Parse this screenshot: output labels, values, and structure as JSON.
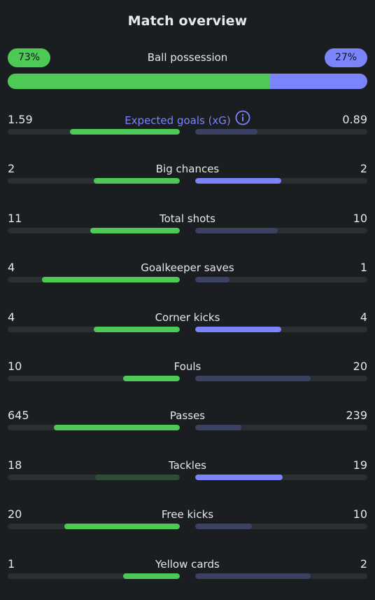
{
  "title": "Match overview",
  "colors": {
    "home_strong": "#4fc956",
    "home_muted": "#2e4d35",
    "away_strong": "#7b84fa",
    "away_muted": "#3b4160",
    "track": "#2a2f33"
  },
  "possession": {
    "label": "Ball possession",
    "home": "73%",
    "away": "27%",
    "home_fraction": 0.73,
    "away_fraction": 0.27
  },
  "stats": [
    {
      "label": "Expected goals (xG)",
      "home": "1.59",
      "away": "0.89",
      "home_frac": 0.64,
      "away_frac": 0.36,
      "home_state": "strong",
      "away_state": "muted",
      "accent": true,
      "icon": "info-icon"
    },
    {
      "label": "Big chances",
      "home": "2",
      "away": "2",
      "home_frac": 0.5,
      "away_frac": 0.5,
      "home_state": "strong",
      "away_state": "strong"
    },
    {
      "label": "Total shots",
      "home": "11",
      "away": "10",
      "home_frac": 0.52,
      "away_frac": 0.48,
      "home_state": "strong",
      "away_state": "muted"
    },
    {
      "label": "Goalkeeper saves",
      "home": "4",
      "away": "1",
      "home_frac": 0.8,
      "away_frac": 0.2,
      "home_state": "strong",
      "away_state": "muted"
    },
    {
      "label": "Corner kicks",
      "home": "4",
      "away": "4",
      "home_frac": 0.5,
      "away_frac": 0.5,
      "home_state": "strong",
      "away_state": "strong"
    },
    {
      "label": "Fouls",
      "home": "10",
      "away": "20",
      "home_frac": 0.33,
      "away_frac": 0.67,
      "home_state": "strong",
      "away_state": "muted"
    },
    {
      "label": "Passes",
      "home": "645",
      "away": "239",
      "home_frac": 0.73,
      "away_frac": 0.27,
      "home_state": "strong",
      "away_state": "muted"
    },
    {
      "label": "Tackles",
      "home": "18",
      "away": "19",
      "home_frac": 0.49,
      "away_frac": 0.51,
      "home_state": "muted",
      "away_state": "strong"
    },
    {
      "label": "Free kicks",
      "home": "20",
      "away": "10",
      "home_frac": 0.67,
      "away_frac": 0.33,
      "home_state": "strong",
      "away_state": "muted"
    },
    {
      "label": "Yellow cards",
      "home": "1",
      "away": "2",
      "home_frac": 0.33,
      "away_frac": 0.67,
      "home_state": "strong",
      "away_state": "muted"
    }
  ]
}
